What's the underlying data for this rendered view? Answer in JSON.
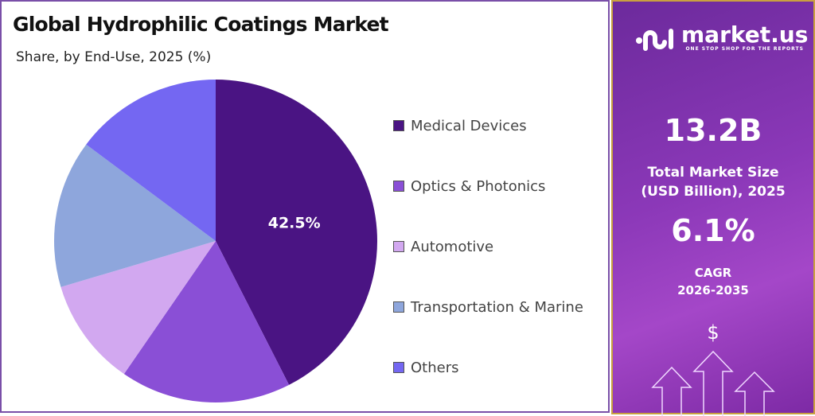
{
  "chart_data": {
    "type": "pie",
    "title": "Global Hydrophilic Coatings Market",
    "subtitle": "Share, by End-Use, 2025 (%)",
    "legend_position": "right",
    "categories": [
      "Medical Devices",
      "Optics & Photonics",
      "Automotive",
      "Transportation & Marine",
      "Others"
    ],
    "values": [
      42.5,
      17.1,
      10.8,
      14.8,
      14.8
    ],
    "data_labels": [
      "42.5%"
    ],
    "colors": [
      "#4a1483",
      "#8a4fd6",
      "#d2a8f0",
      "#8ea6dc",
      "#7467f2"
    ]
  },
  "sidebar": {
    "logo_text": "market.us",
    "logo_tagline": "ONE STOP SHOP FOR THE REPORTS",
    "market_size": "13.2B",
    "market_size_label_1": "Total Market Size",
    "market_size_label_2": "(USD Billion), 2025",
    "cagr": "6.1%",
    "cagr_label_1": "CAGR",
    "cagr_label_2": "2026-2035",
    "currency_symbol": "$"
  }
}
